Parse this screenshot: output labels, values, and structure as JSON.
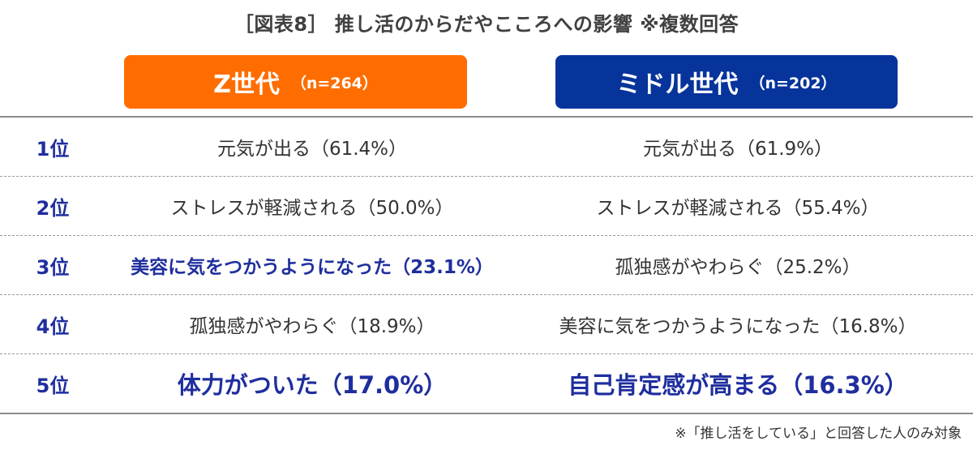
{
  "title": "［図表8］ 推し活のからだやこころへの影響 ※複数回答",
  "colors": {
    "z_header": "#FF6D00",
    "middle_header": "#06349B",
    "highlight_text": "#1F2E9E",
    "body_text": "#333333",
    "separator": "#9A9A9A"
  },
  "groups": [
    {
      "name": "Z世代",
      "n": "（n=264）"
    },
    {
      "name": "ミドル世代",
      "n": "（n=202）"
    }
  ],
  "chart_data": {
    "type": "table",
    "title": "［図表8］ 推し活のからだやこころへの影響 ※複数回答",
    "columns": [
      "Z世代（n=264）",
      "ミドル世代（n=202）"
    ],
    "rows": [
      {
        "rank": "1位",
        "z": {
          "text": "元気が出る（61.4%）",
          "item": "元気が出る",
          "value": 61.4
        },
        "middle": {
          "text": "元気が出る（61.9%）",
          "item": "元気が出る",
          "value": 61.9
        }
      },
      {
        "rank": "2位",
        "z": {
          "text": "ストレスが軽減される（50.0%）",
          "item": "ストレスが軽減される",
          "value": 50.0
        },
        "middle": {
          "text": "ストレスが軽減される（55.4%）",
          "item": "ストレスが軽減される",
          "value": 55.4
        }
      },
      {
        "rank": "3位",
        "z": {
          "text": "美容に気をつかうようになった（23.1%）",
          "item": "美容に気をつかうようになった",
          "value": 23.1,
          "highlight": "bold"
        },
        "middle": {
          "text": "孤独感がやわらぐ（25.2%）",
          "item": "孤独感がやわらぐ",
          "value": 25.2
        }
      },
      {
        "rank": "4位",
        "z": {
          "text": "孤独感がやわらぐ（18.9%）",
          "item": "孤独感がやわらぐ",
          "value": 18.9
        },
        "middle": {
          "text": "美容に気をつかうようになった（16.8%）",
          "item": "美容に気をつかうようになった",
          "value": 16.8
        }
      },
      {
        "rank": "5位",
        "z": {
          "text": "体力がついた（17.0%）",
          "item": "体力がついた",
          "value": 17.0,
          "highlight": "large"
        },
        "middle": {
          "text": "自己肯定感が高まる（16.3%）",
          "item": "自己肯定感が高まる",
          "value": 16.3,
          "highlight": "large"
        }
      }
    ]
  },
  "footnote": "※「推し活をしている」と回答した人のみ対象"
}
